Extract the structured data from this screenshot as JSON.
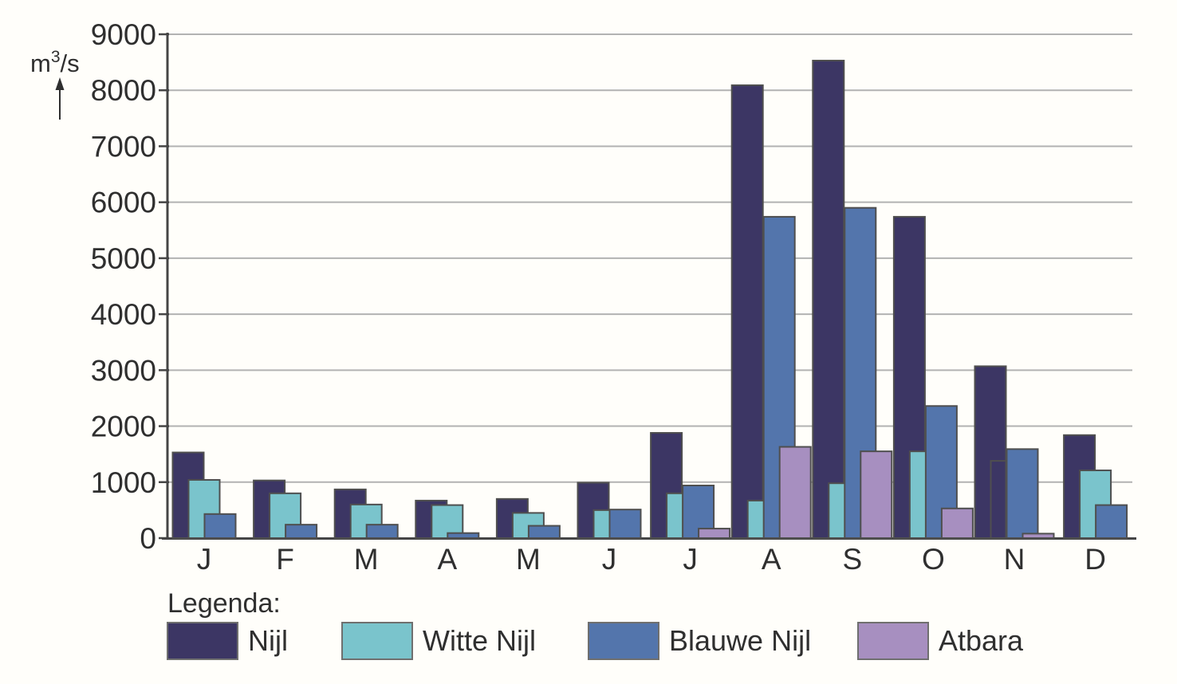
{
  "page": {
    "background_color": "#fffefa"
  },
  "chart_data": {
    "type": "bar",
    "title": "",
    "xlabel": "",
    "ylabel": "m³/s",
    "ylabel_parts": {
      "base": "m",
      "superscript": "3",
      "rest": "/s"
    },
    "categories": [
      "J",
      "F",
      "M",
      "A",
      "M",
      "J",
      "J",
      "A",
      "S",
      "O",
      "N",
      "D"
    ],
    "ylim": [
      0,
      9000
    ],
    "ytick_step": 1000,
    "ytick_labels": [
      "0",
      "1000",
      "2000",
      "3000",
      "4000",
      "5000",
      "6000",
      "7000",
      "8000",
      "9000"
    ],
    "grid": "horizontal",
    "legend_title": "Legenda:",
    "legend_position": "bottom",
    "bar_style": "overlapping",
    "series": [
      {
        "name": "Nijl",
        "color": "#3c3664",
        "values": [
          1530,
          1030,
          870,
          670,
          700,
          990,
          1880,
          8090,
          8530,
          5740,
          3070,
          1840
        ]
      },
      {
        "name": "Witte Nijl",
        "color": "#7ac4cc",
        "values": [
          1040,
          800,
          600,
          590,
          450,
          500,
          800,
          670,
          980,
          1550,
          1380,
          1210
        ],
        "unfilled_indices": [
          10
        ]
      },
      {
        "name": "Blauwe Nijl",
        "color": "#5375ac",
        "values": [
          430,
          240,
          240,
          90,
          220,
          510,
          940,
          5740,
          5900,
          2360,
          1590,
          590
        ]
      },
      {
        "name": "Atbara",
        "color": "#a78fc0",
        "values": [
          null,
          null,
          null,
          null,
          null,
          null,
          170,
          1630,
          1550,
          530,
          80,
          null
        ]
      }
    ],
    "colors": {
      "bar_outline": "#4f4f4f",
      "gridline": "#b2b2b2",
      "axis": "#454545",
      "text": "#2f2f2f",
      "legend_swatch_outline": "#6f6f6f"
    }
  }
}
